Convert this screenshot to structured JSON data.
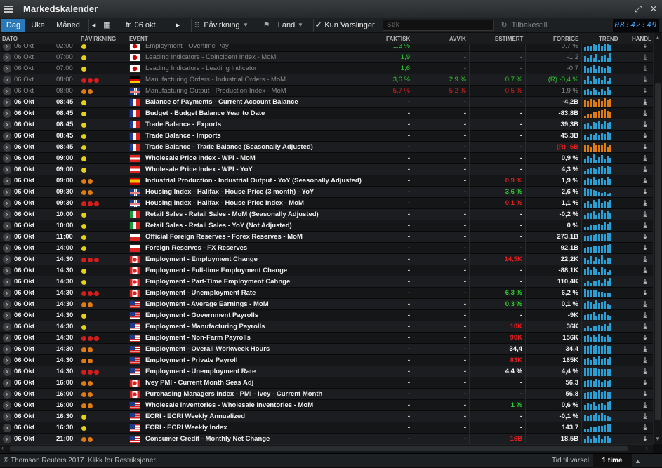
{
  "app": {
    "title": "Markedskalender"
  },
  "toolbar": {
    "day": "Dag",
    "week": "Uke",
    "month": "Måned",
    "date": "fr. 06 okt.",
    "impact": "Påvirkning",
    "country": "Land",
    "alerts_only": "Kun Varslinger",
    "search_placeholder": "Søk",
    "reset": "Tilbakestill",
    "clock": "08:42:49"
  },
  "columns": {
    "date": "DATO",
    "impact": "PÅVIRKNING",
    "event": "EVENT",
    "actual": "FAKTISK",
    "deviation": "AVVIK",
    "estimate": "ESTIMERT",
    "previous": "FORRIGE",
    "trend": "TREND",
    "action": "HANDL"
  },
  "colors": {
    "accent": "#2a78b8",
    "positive": "#2ed12e",
    "negative": "#e02020",
    "impact_high": "#d61d1d",
    "impact_medium": "#e07a12",
    "impact_low": "#e6d214"
  },
  "rows": [
    {
      "date": "06 Okt",
      "time": "02:00",
      "impact": [
        "low"
      ],
      "flag": "jp",
      "event": "Employment - Overtime Pay",
      "actual": "1,3 %",
      "actual_c": "green",
      "dev": "-",
      "est": "-",
      "prev": "0,7 %",
      "state": "grey",
      "trend": [
        4,
        6,
        5,
        8,
        7,
        9,
        6,
        8,
        10,
        7
      ],
      "tc": "#2a9fd6"
    },
    {
      "date": "06 Okt",
      "time": "07:00",
      "impact": [
        "low"
      ],
      "flag": "jp",
      "event": "Leading Indicators - Coincident Index - MoM",
      "actual": "1,9",
      "actual_c": "green",
      "dev": "-",
      "est": "-",
      "prev": "-1,2",
      "state": "grey",
      "trend": [
        5,
        3,
        6,
        4,
        7,
        2,
        5,
        6,
        3,
        8
      ],
      "tc": "#2a9fd6"
    },
    {
      "date": "06 Okt",
      "time": "07:00",
      "impact": [
        "low"
      ],
      "flag": "jp",
      "event": "Leading Indicators - Leading Indicator",
      "actual": "1,6",
      "actual_c": "green",
      "dev": "-",
      "est": "-",
      "prev": "-0,7",
      "state": "grey",
      "trend": [
        6,
        4,
        5,
        7,
        3,
        6,
        5,
        4,
        6,
        5
      ],
      "tc": "#2a9fd6"
    },
    {
      "date": "06 Okt",
      "time": "08:00",
      "impact": [
        "high",
        "high",
        "high"
      ],
      "flag": "de",
      "event": "Manufacturing Orders - Industrial Orders - MoM",
      "actual": "3,6 %",
      "actual_c": "green",
      "dev": "2,9 %",
      "dev_c": "green",
      "est": "0,7 %",
      "est_c": "green",
      "prev": "(R) -0,4 %",
      "prev_c": "green",
      "state": "grey",
      "trend": [
        4,
        7,
        3,
        8,
        5,
        6,
        4,
        7,
        3,
        6
      ],
      "tc": "#2a9fd6"
    },
    {
      "date": "06 Okt",
      "time": "08:00",
      "impact": [
        "medium",
        "medium"
      ],
      "flag": "gb",
      "event": "Manufacturing Output - Production Index - MoM",
      "actual": "-5,7 %",
      "actual_c": "red",
      "dev": "-5,2 %",
      "dev_c": "red",
      "est": "-0,5 %",
      "est_c": "red",
      "prev": "1,9 %",
      "state": "grey",
      "trend": [
        5,
        6,
        4,
        7,
        5,
        3,
        6,
        4,
        8,
        5
      ],
      "tc": "#2a9fd6"
    },
    {
      "date": "06 Okt",
      "time": "08:45",
      "impact": [
        "low"
      ],
      "flag": "fr",
      "event": "Balance of Payments - Current Account Balance",
      "actual": "-",
      "dev": "-",
      "est": "-",
      "prev": "-4,2B",
      "state": "bright",
      "trend": [
        8,
        7,
        9,
        8,
        6,
        9,
        7,
        10,
        8,
        9
      ],
      "tc": "#e07a12"
    },
    {
      "date": "06 Okt",
      "time": "08:45",
      "impact": [
        "low"
      ],
      "flag": "fr",
      "event": "Budget - Budget Balance Year to Date",
      "actual": "-",
      "dev": "-",
      "est": "-",
      "prev": "-83,8B",
      "state": "bright",
      "trend": [
        3,
        5,
        6,
        8,
        9,
        10,
        11,
        12,
        10,
        9
      ],
      "tc": "#e07a12"
    },
    {
      "date": "06 Okt",
      "time": "08:45",
      "impact": [
        "low"
      ],
      "flag": "fr",
      "event": "Trade Balance - Exports",
      "actual": "-",
      "dev": "-",
      "est": "-",
      "prev": "39,3B",
      "state": "bright",
      "trend": [
        6,
        8,
        5,
        9,
        7,
        10,
        6,
        11,
        8,
        9
      ],
      "tc": "#2a9fd6"
    },
    {
      "date": "06 Okt",
      "time": "08:45",
      "impact": [
        "low"
      ],
      "flag": "fr",
      "event": "Trade Balance - Imports",
      "actual": "-",
      "dev": "-",
      "est": "-",
      "prev": "45,3B",
      "state": "bright",
      "trend": [
        7,
        5,
        8,
        6,
        9,
        7,
        10,
        8,
        11,
        9
      ],
      "tc": "#2a9fd6"
    },
    {
      "date": "06 Okt",
      "time": "08:45",
      "impact": [
        "low"
      ],
      "flag": "fr",
      "event": "Trade Balance - Trade Balance (Seasonally Adjusted)",
      "actual": "-",
      "dev": "-",
      "est": "-",
      "prev": "(R) -6B",
      "prev_c": "red",
      "state": "bright",
      "trend": [
        5,
        6,
        4,
        7,
        5,
        6,
        5,
        7,
        4,
        6
      ],
      "tc": "#e07a12"
    },
    {
      "date": "06 Okt",
      "time": "09:00",
      "impact": [
        "low"
      ],
      "flag": "at",
      "event": "Wholesale Price Index - WPI - MoM",
      "actual": "-",
      "dev": "-",
      "est": "-",
      "prev": "0,9 %",
      "state": "bright",
      "trend": [
        4,
        7,
        5,
        9,
        3,
        6,
        8,
        4,
        7,
        5
      ],
      "tc": "#2a9fd6"
    },
    {
      "date": "06 Okt",
      "time": "09:00",
      "impact": [
        "low"
      ],
      "flag": "at",
      "event": "Wholesale Price Index - WPI - YoY",
      "actual": "-",
      "dev": "-",
      "est": "-",
      "prev": "4,3 %",
      "state": "bright",
      "trend": [
        5,
        6,
        7,
        8,
        6,
        9,
        10,
        8,
        11,
        9
      ],
      "tc": "#2a9fd6"
    },
    {
      "date": "06 Okt",
      "time": "09:00",
      "impact": [
        "medium",
        "medium"
      ],
      "flag": "es",
      "event": "Industrial Production - Industrial Output - YoY (Seasonally Adjusted)",
      "actual": "-",
      "dev": "-",
      "est": "0,9 %",
      "est_c": "red",
      "prev": "1,9 %",
      "state": "bright",
      "trend": [
        6,
        8,
        7,
        9,
        5,
        7,
        8,
        6,
        9,
        7
      ],
      "tc": "#2a9fd6"
    },
    {
      "date": "06 Okt",
      "time": "09:30",
      "impact": [
        "medium",
        "medium"
      ],
      "flag": "gb",
      "event": "Housing Index - Halifax - House Price (3 month) - YoY",
      "actual": "-",
      "dev": "-",
      "est": "3,6 %",
      "est_c": "green",
      "prev": "2,6 %",
      "state": "bright",
      "trend": [
        11,
        9,
        10,
        8,
        7,
        6,
        5,
        6,
        4,
        5
      ],
      "tc": "#2a9fd6"
    },
    {
      "date": "06 Okt",
      "time": "09:30",
      "impact": [
        "high",
        "high",
        "high"
      ],
      "flag": "gb",
      "event": "Housing Index - Halifax - House Price Index - MoM",
      "actual": "-",
      "dev": "-",
      "est": "0,1 %",
      "est_c": "red",
      "prev": "1,1 %",
      "state": "bright",
      "trend": [
        5,
        7,
        4,
        8,
        6,
        9,
        5,
        7,
        6,
        8
      ],
      "tc": "#2a9fd6"
    },
    {
      "date": "06 Okt",
      "time": "10:00",
      "impact": [
        "low"
      ],
      "flag": "it",
      "event": "Retail Sales - Retail Sales - MoM (Seasonally Adjusted)",
      "actual": "-",
      "dev": "-",
      "est": "-",
      "prev": "-0,2 %",
      "state": "bright",
      "trend": [
        4,
        6,
        5,
        7,
        3,
        6,
        8,
        5,
        7,
        6
      ],
      "tc": "#2a9fd6"
    },
    {
      "date": "06 Okt",
      "time": "10:00",
      "impact": [
        "low"
      ],
      "flag": "it",
      "event": "Retail Sales - Retail Sales - YoY (Not Adjusted)",
      "actual": "-",
      "dev": "-",
      "est": "-",
      "prev": "0 %",
      "state": "bright",
      "trend": [
        3,
        4,
        5,
        6,
        5,
        7,
        6,
        8,
        7,
        9
      ],
      "tc": "#2a9fd6"
    },
    {
      "date": "06 Okt",
      "time": "11:00",
      "impact": [
        "low"
      ],
      "flag": "pl",
      "event": "Official Foreign Reserves - Forex Reserves - MoM",
      "actual": "-",
      "dev": "-",
      "est": "-",
      "prev": "273,1B",
      "state": "bright",
      "trend": [
        6,
        7,
        8,
        8,
        9,
        9,
        10,
        10,
        11,
        11
      ],
      "tc": "#2a9fd6"
    },
    {
      "date": "06 Okt",
      "time": "14:00",
      "impact": [
        "low"
      ],
      "flag": "pl",
      "event": "Foreign Reserves - FX Reserves",
      "actual": "-",
      "dev": "-",
      "est": "-",
      "prev": "92,1B",
      "state": "bright",
      "trend": [
        7,
        8,
        8,
        9,
        9,
        10,
        10,
        11,
        11,
        12
      ],
      "tc": "#2a9fd6"
    },
    {
      "date": "06 Okt",
      "time": "14:30",
      "impact": [
        "high",
        "high",
        "high"
      ],
      "flag": "ca",
      "event": "Employment - Employment Change",
      "actual": "-",
      "dev": "-",
      "est": "14,5K",
      "est_c": "red",
      "prev": "22,2K",
      "state": "bright",
      "trend": [
        8,
        5,
        10,
        4,
        9,
        6,
        11,
        5,
        8,
        7
      ],
      "tc": "#2a9fd6"
    },
    {
      "date": "06 Okt",
      "time": "14:30",
      "impact": [
        "low"
      ],
      "flag": "ca",
      "event": "Employment - Full-time Employment Change",
      "actual": "-",
      "dev": "-",
      "est": "-",
      "prev": "-88,1K",
      "state": "bright",
      "trend": [
        6,
        8,
        5,
        9,
        7,
        4,
        8,
        6,
        3,
        5
      ],
      "tc": "#2a9fd6"
    },
    {
      "date": "06 Okt",
      "time": "14:30",
      "impact": [
        "low"
      ],
      "flag": "ca",
      "event": "Employment - Part-Time Employment Cahnge",
      "actual": "-",
      "dev": "-",
      "est": "-",
      "prev": "110,4K",
      "state": "bright",
      "trend": [
        4,
        6,
        5,
        7,
        6,
        8,
        5,
        9,
        7,
        11
      ],
      "tc": "#2a9fd6"
    },
    {
      "date": "06 Okt",
      "time": "14:30",
      "impact": [
        "high",
        "high",
        "high"
      ],
      "flag": "ca",
      "event": "Employment - Unemployment Rate",
      "actual": "-",
      "dev": "-",
      "est": "6,3 %",
      "est_c": "green",
      "prev": "6,2 %",
      "state": "bright",
      "trend": [
        10,
        9,
        9,
        8,
        8,
        7,
        7,
        6,
        6,
        6
      ],
      "tc": "#2a9fd6"
    },
    {
      "date": "06 Okt",
      "time": "14:30",
      "impact": [
        "medium",
        "medium"
      ],
      "flag": "us",
      "event": "Employment - Average Earnings - MoM",
      "actual": "-",
      "dev": "-",
      "est": "0,3 %",
      "est_c": "green",
      "prev": "0,1 %",
      "state": "bright",
      "trend": [
        6,
        8,
        7,
        5,
        9,
        6,
        7,
        8,
        5,
        4
      ],
      "tc": "#2a9fd6"
    },
    {
      "date": "06 Okt",
      "time": "14:30",
      "impact": [
        "low"
      ],
      "flag": "us",
      "event": "Employment - Government Payrolls",
      "actual": "-",
      "dev": "-",
      "est": "-",
      "prev": "-9K",
      "state": "bright",
      "trend": [
        5,
        7,
        6,
        8,
        4,
        7,
        6,
        9,
        5,
        4
      ],
      "tc": "#2a9fd6"
    },
    {
      "date": "06 Okt",
      "time": "14:30",
      "impact": [
        "low"
      ],
      "flag": "us",
      "event": "Employment - Manufacturing Payrolls",
      "actual": "-",
      "dev": "-",
      "est": "10K",
      "est_c": "red",
      "prev": "36K",
      "state": "bright",
      "trend": [
        4,
        6,
        5,
        7,
        6,
        8,
        7,
        9,
        6,
        11
      ],
      "tc": "#2a9fd6"
    },
    {
      "date": "06 Okt",
      "time": "14:30",
      "impact": [
        "high",
        "high",
        "high"
      ],
      "flag": "us",
      "event": "Employment - Non-Farm Payrolls",
      "actual": "-",
      "dev": "-",
      "est": "90K",
      "est_c": "red",
      "prev": "156K",
      "state": "bright",
      "trend": [
        8,
        10,
        7,
        9,
        6,
        11,
        8,
        7,
        9,
        6
      ],
      "tc": "#2a9fd6"
    },
    {
      "date": "06 Okt",
      "time": "14:30",
      "impact": [
        "medium",
        "medium"
      ],
      "flag": "us",
      "event": "Employment - Overall Workweek Hours",
      "actual": "-",
      "dev": "-",
      "est": "34,4",
      "est_c": "white",
      "prev": "34,4",
      "state": "bright",
      "trend": [
        9,
        9,
        10,
        9,
        10,
        9,
        9,
        10,
        9,
        9
      ],
      "tc": "#2a9fd6"
    },
    {
      "date": "06 Okt",
      "time": "14:30",
      "impact": [
        "medium",
        "medium"
      ],
      "flag": "us",
      "event": "Employment - Private Payroll",
      "actual": "-",
      "dev": "-",
      "est": "83K",
      "est_c": "red",
      "prev": "165K",
      "state": "bright",
      "trend": [
        7,
        9,
        6,
        10,
        8,
        11,
        7,
        9,
        8,
        10
      ],
      "tc": "#2a9fd6"
    },
    {
      "date": "06 Okt",
      "time": "14:30",
      "impact": [
        "high",
        "high",
        "high"
      ],
      "flag": "us",
      "event": "Employment - Unemployment Rate",
      "actual": "-",
      "dev": "-",
      "est": "4,4 %",
      "est_c": "white",
      "prev": "4,4 %",
      "state": "bright",
      "trend": [
        10,
        10,
        9,
        9,
        9,
        8,
        8,
        8,
        8,
        8
      ],
      "tc": "#2a9fd6"
    },
    {
      "date": "06 Okt",
      "time": "16:00",
      "impact": [
        "medium",
        "medium"
      ],
      "flag": "ca",
      "event": "Ivey PMI - Current Month Seas Adj",
      "actual": "-",
      "dev": "-",
      "est": "-",
      "prev": "56,3",
      "state": "bright",
      "trend": [
        8,
        9,
        10,
        8,
        11,
        9,
        7,
        10,
        8,
        9
      ],
      "tc": "#2a9fd6"
    },
    {
      "date": "06 Okt",
      "time": "16:00",
      "impact": [
        "medium",
        "medium"
      ],
      "flag": "ca",
      "event": "Purchasing Managers Index - PMI - Ivey - Current Month",
      "actual": "-",
      "dev": "-",
      "est": "-",
      "prev": "56,8",
      "state": "bright",
      "trend": [
        7,
        9,
        8,
        10,
        9,
        11,
        8,
        10,
        9,
        8
      ],
      "tc": "#2a9fd6"
    },
    {
      "date": "06 Okt",
      "time": "16:00",
      "impact": [
        "medium",
        "medium"
      ],
      "flag": "us",
      "event": "Wholesale Inventories - Wholesale Inventories - MoM",
      "actual": "-",
      "dev": "-",
      "est": "1 %",
      "est_c": "green",
      "prev": "0,6 %",
      "state": "bright",
      "trend": [
        5,
        7,
        6,
        8,
        4,
        6,
        7,
        5,
        8,
        9
      ],
      "tc": "#2a9fd6"
    },
    {
      "date": "06 Okt",
      "time": "16:30",
      "impact": [
        "low"
      ],
      "flag": "us",
      "event": "ECRI - ECRI Weekly Annualized",
      "actual": "-",
      "dev": "-",
      "est": "-",
      "prev": "-0,1 %",
      "state": "bright",
      "trend": [
        6,
        5,
        7,
        6,
        8,
        7,
        9,
        6,
        5,
        4
      ],
      "tc": "#2a9fd6"
    },
    {
      "date": "06 Okt",
      "time": "16:30",
      "impact": [
        "low"
      ],
      "flag": "us",
      "event": "ECRI - ECRI Weekly Index",
      "actual": "-",
      "dev": "-",
      "est": "-",
      "prev": "143,7",
      "state": "bright",
      "trend": [
        4,
        5,
        6,
        6,
        7,
        8,
        8,
        9,
        10,
        11
      ],
      "tc": "#2a9fd6"
    },
    {
      "date": "06 Okt",
      "time": "21:00",
      "impact": [
        "medium",
        "medium"
      ],
      "flag": "us",
      "event": "Consumer Credit - Monthly Net Change",
      "actual": "-",
      "dev": "-",
      "est": "16B",
      "est_c": "red",
      "prev": "18,5B",
      "state": "bright",
      "trend": [
        6,
        8,
        5,
        9,
        7,
        10,
        6,
        8,
        9,
        7
      ],
      "tc": "#2a9fd6"
    }
  ],
  "status": {
    "copyright": "© Thomson Reuters 2017. Klikk for Restriksjoner.",
    "notify_label": "Tid til varsel",
    "notify_value": "1 time"
  }
}
